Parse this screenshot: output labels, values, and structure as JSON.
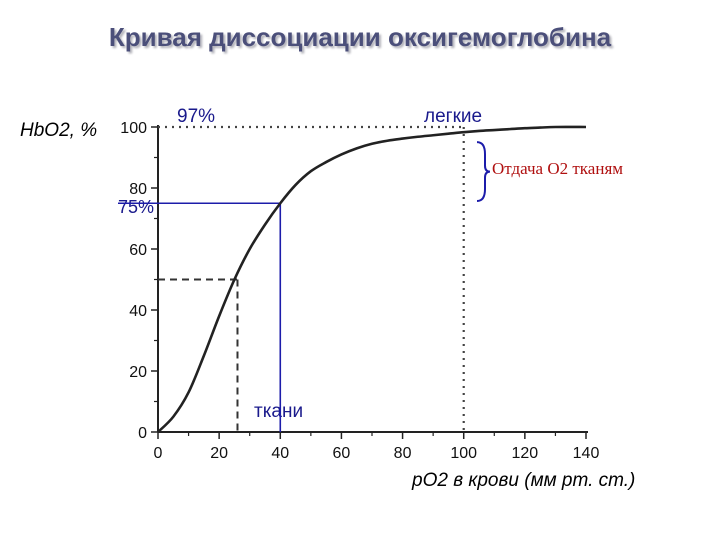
{
  "chart_data": {
    "type": "line",
    "title": "Кривая диссоциации оксигемоглобина",
    "xlabel": "pO2 в крови (мм рт. ст.)",
    "ylabel": "HbO2, %",
    "xlim": [
      0,
      140
    ],
    "ylim": [
      0,
      100
    ],
    "x_ticks": [
      "0",
      "20",
      "40",
      "60",
      "80",
      "100",
      "120",
      "140"
    ],
    "y_ticks": [
      "0",
      "20",
      "40",
      "60",
      "80",
      "100"
    ],
    "grid": false,
    "series": [
      {
        "x": [
          0,
          5,
          10,
          15,
          20,
          25,
          30,
          35,
          40,
          45,
          50,
          55,
          60,
          65,
          70,
          75,
          80,
          85,
          90,
          95,
          100,
          105,
          110,
          115,
          120,
          125,
          130,
          140
        ],
        "y": [
          0,
          5,
          13,
          25,
          38,
          50,
          60,
          68,
          75,
          81,
          85.5,
          88.5,
          91,
          93,
          94.5,
          95.5,
          96.2,
          96.8,
          97.3,
          97.8,
          98.3,
          98.7,
          99,
          99.3,
          99.6,
          99.8,
          100,
          100
        ]
      }
    ],
    "annotations": {
      "p97": "97%",
      "lungs": "легкие",
      "giveaway": "Отдача О2 тканям",
      "p75": "75%",
      "tissues": "ткани"
    },
    "reference_lines": [
      {
        "style": "dotted",
        "x": 100,
        "y": 100
      },
      {
        "style": "solid-blue",
        "x": 40,
        "y": 75
      },
      {
        "style": "dashed",
        "x": 26,
        "y": 50
      }
    ]
  }
}
